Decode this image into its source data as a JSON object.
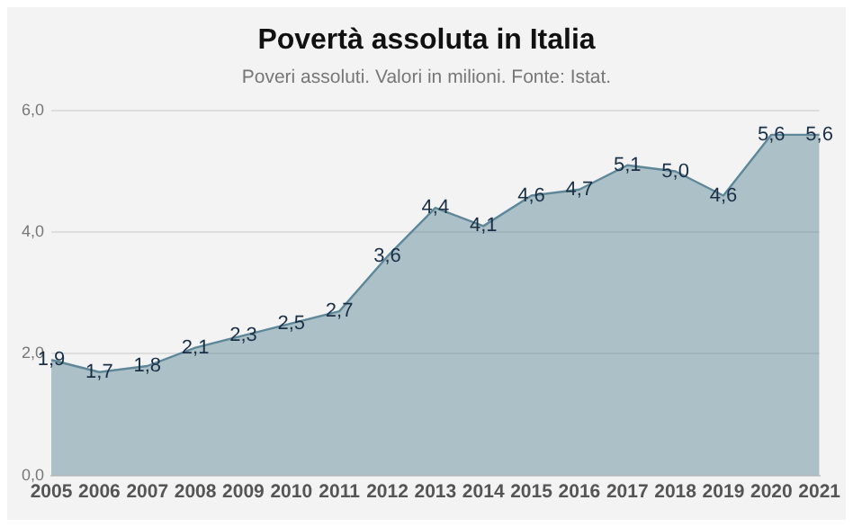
{
  "chart_data": {
    "type": "area",
    "title": "Povertà assoluta in Italia",
    "subtitle": "Poveri assoluti. Valori in milioni. Fonte: Istat.",
    "categories": [
      "2005",
      "2006",
      "2007",
      "2008",
      "2009",
      "2010",
      "2011",
      "2012",
      "2013",
      "2014",
      "2015",
      "2016",
      "2017",
      "2018",
      "2019",
      "2020",
      "2021"
    ],
    "series": [
      {
        "color": "#5f8797",
        "values": [
          1.9,
          1.7,
          1.8,
          2.1,
          2.3,
          2.5,
          2.7,
          3.6,
          4.4,
          4.1,
          4.6,
          4.7,
          5.1,
          5.0,
          4.6,
          5.6,
          5.6
        ],
        "value_labels": [
          "1,9",
          "1,7",
          "1,8",
          "2,1",
          "2,3",
          "2,5",
          "2,7",
          "3,6",
          "4,4",
          "4,1",
          "4,6",
          "4,7",
          "5,1",
          "5,0",
          "4,6",
          "5,6",
          "5,6"
        ]
      }
    ],
    "ylim": [
      0,
      6
    ],
    "yticks": [
      {
        "value": 0,
        "label": "0,0"
      },
      {
        "value": 2,
        "label": "2,0"
      },
      {
        "value": 4,
        "label": "4,0"
      },
      {
        "value": 6,
        "label": "6,0"
      }
    ],
    "grid": "y",
    "legend": false,
    "marker": "none"
  }
}
